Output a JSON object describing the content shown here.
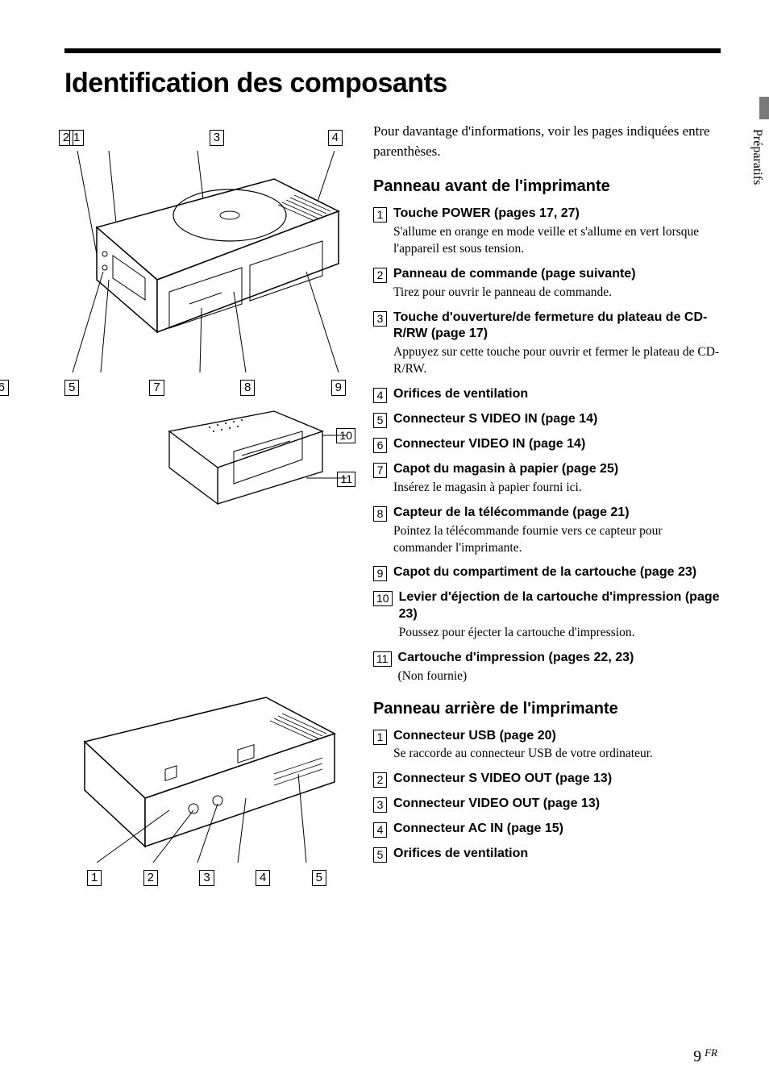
{
  "side_tab": "Préparatifs",
  "title": "Identification des composants",
  "intro": "Pour davantage d'informations, voir les pages indiquées entre parenthèses.",
  "section_front": "Panneau avant de l'imprimante",
  "section_rear": "Panneau arrière de l'imprimante",
  "diagram_top": {
    "callouts_row1": [
      "1",
      "2",
      "3",
      "4"
    ],
    "callouts_row2": [
      "5",
      "6",
      "7",
      "8",
      "9"
    ],
    "callouts_side": [
      "10",
      "11"
    ]
  },
  "diagram_bottom": {
    "callouts_row": [
      "1",
      "2",
      "3",
      "4",
      "5"
    ]
  },
  "front_items": [
    {
      "num": "1",
      "title": "Touche POWER (pages 17, 27)",
      "desc": "S'allume en orange en mode veille et s'allume en vert lorsque l'appareil est sous tension."
    },
    {
      "num": "2",
      "title": "Panneau de commande (page suivante)",
      "desc": "Tirez pour ouvrir le panneau de commande."
    },
    {
      "num": "3",
      "title": "Touche d'ouverture/de fermeture du plateau de CD-R/RW (page 17)",
      "desc": "Appuyez sur cette touche pour ouvrir et fermer le plateau de CD-R/RW."
    },
    {
      "num": "4",
      "title": "Orifices de ventilation",
      "desc": ""
    },
    {
      "num": "5",
      "title": "Connecteur S VIDEO IN (page 14)",
      "desc": ""
    },
    {
      "num": "6",
      "title": "Connecteur VIDEO IN (page 14)",
      "desc": ""
    },
    {
      "num": "7",
      "title": "Capot du magasin à papier (page 25)",
      "desc": "Insérez le magasin à papier fourni ici."
    },
    {
      "num": "8",
      "title": "Capteur de la télécommande (page 21)",
      "desc": "Pointez la télécommande fournie vers ce capteur pour commander l'imprimante."
    },
    {
      "num": "9",
      "title": "Capot du compartiment de la cartouche (page 23)",
      "desc": ""
    },
    {
      "num": "10",
      "title": "Levier d'éjection de la cartouche d'impression (page 23)",
      "desc": "Poussez pour éjecter la cartouche d'impression."
    },
    {
      "num": "11",
      "title": "Cartouche d'impression  (pages 22, 23)",
      "desc": "(Non fournie)"
    }
  ],
  "rear_items": [
    {
      "num": "1",
      "title": "Connecteur USB (page 20)",
      "desc": "Se raccorde au connecteur USB de votre ordinateur."
    },
    {
      "num": "2",
      "title": "Connecteur S VIDEO OUT (page 13)",
      "desc": ""
    },
    {
      "num": "3",
      "title": "Connecteur VIDEO OUT (page 13)",
      "desc": ""
    },
    {
      "num": "4",
      "title": "Connecteur AC IN (page 15)",
      "desc": ""
    },
    {
      "num": "5",
      "title": "Orifices de ventilation",
      "desc": ""
    }
  ],
  "footer": {
    "page": "9",
    "lang": "FR"
  },
  "colors": {
    "rule": "#000000",
    "tab_bar": "#7a7a7a",
    "text": "#000000",
    "bg": "#ffffff"
  }
}
